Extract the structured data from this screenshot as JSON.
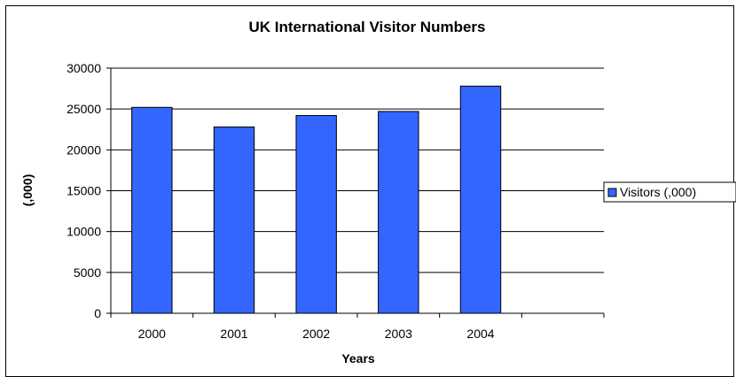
{
  "chart_data": {
    "type": "bar",
    "title": "UK International Visitor Numbers",
    "xlabel": "Years",
    "ylabel": "(,000)",
    "categories": [
      "2000",
      "2001",
      "2002",
      "2003",
      "2004"
    ],
    "series": [
      {
        "name": "Visitors (,000)",
        "values": [
          25200,
          22800,
          24200,
          24700,
          27800
        ]
      }
    ],
    "ylim": [
      0,
      30000
    ],
    "yticks": [
      "0",
      "5000",
      "10000",
      "15000",
      "20000",
      "25000",
      "30000"
    ],
    "grid": true,
    "legend": "right",
    "colors": {
      "bar": "#3366ff",
      "bar_stroke": "#000000",
      "grid": "#000000"
    }
  }
}
